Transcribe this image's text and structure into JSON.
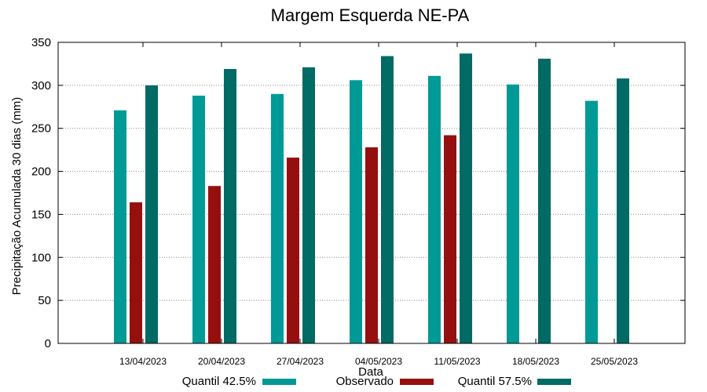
{
  "chart_data": {
    "type": "bar",
    "title": "Margem Esquerda NE-PA",
    "xlabel": "Data",
    "ylabel": "Precipitação Acumulada 30 dias (mm)",
    "ylim": [
      0,
      350
    ],
    "yticks": [
      0,
      50,
      100,
      150,
      200,
      250,
      300,
      350
    ],
    "ytick_labels": [
      "0",
      "50",
      "100",
      "150",
      "200",
      "250",
      "300",
      "350"
    ],
    "grid": true,
    "legend_position": "bottom",
    "categories": [
      "13/04/2023",
      "20/04/2023",
      "27/04/2023",
      "04/05/2023",
      "11/05/2023",
      "18/05/2023",
      "25/05/2023"
    ],
    "series": [
      {
        "name": "Quantil 42.5%",
        "color": "#009a96",
        "values": [
          271,
          288,
          290,
          306,
          311,
          301,
          282
        ]
      },
      {
        "name": "Observado",
        "color": "#960f0f",
        "values": [
          164,
          183,
          216,
          228,
          242,
          null,
          null
        ]
      },
      {
        "name": "Quantil 57.5%",
        "color": "#006a64",
        "values": [
          300,
          319,
          321,
          334,
          337,
          331,
          308
        ]
      }
    ]
  }
}
